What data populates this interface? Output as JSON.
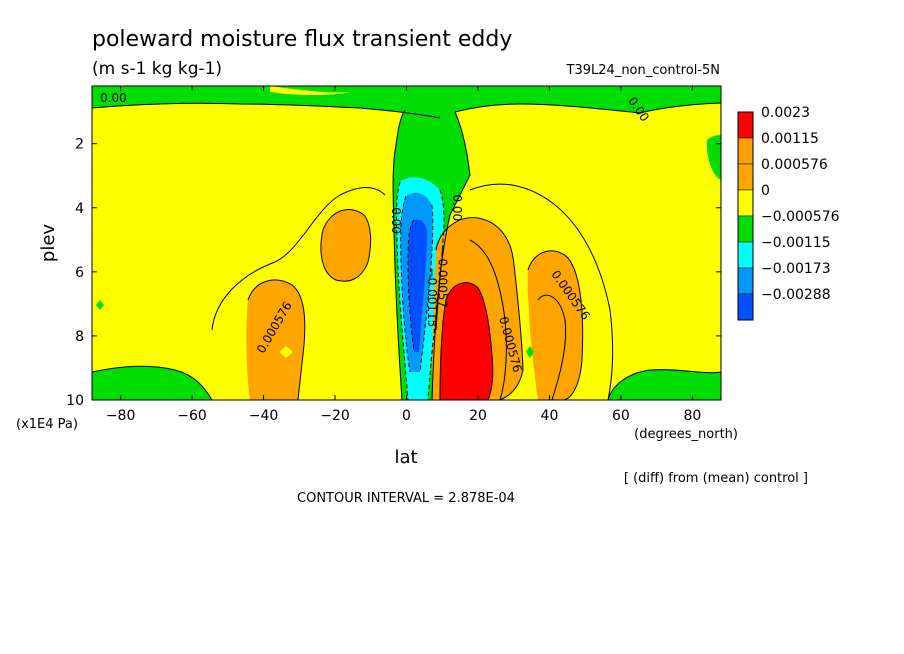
{
  "chart_data": {
    "type": "heatmap",
    "title": "poleward moisture flux transient eddy",
    "units": "(m s-1 kg kg-1)",
    "experiment": "T39L24_non_control-5N",
    "xlabel": "lat",
    "xunits": "(degrees_north)",
    "ylabel": "plev",
    "yunits": "(x1E4 Pa)",
    "xlim": [
      -88,
      88
    ],
    "ylim": [
      10,
      0.2
    ],
    "x_ticks": [
      -80,
      -60,
      -40,
      -20,
      0,
      20,
      40,
      60,
      80
    ],
    "x_tick_labels": [
      "−80",
      "−60",
      "−40",
      "−20",
      "0",
      "20",
      "40",
      "60",
      "80"
    ],
    "y_ticks": [
      2,
      4,
      6,
      8,
      10
    ],
    "y_tick_labels": [
      "2",
      "4",
      "6",
      "8",
      "10"
    ],
    "note": "[ (diff) from (mean) control ]",
    "contour_interval": "CONTOUR INTERVAL = 2.878E-04",
    "legend": [
      {
        "label": "0.0023",
        "color": "#ff0000"
      },
      {
        "label": "0.00115",
        "color": "#ff9f00"
      },
      {
        "label": "0.000576",
        "color": "#ffa500"
      },
      {
        "label": "0",
        "color": "#ffff00"
      },
      {
        "label": "−0.000576",
        "color": "#00dd00"
      },
      {
        "label": "−0.00115",
        "color": "#00ffff"
      },
      {
        "label": "−0.00173",
        "color": "#0099ff"
      },
      {
        "label": "−0.00288",
        "color": "#0050ff"
      }
    ],
    "contour_labels": [
      {
        "text": "0.00",
        "lat": -82,
        "p": 0.7
      },
      {
        "text": "0.00",
        "lat": 64,
        "p": 1.0
      },
      {
        "text": "0.00",
        "lat": -4,
        "p": 4.4
      },
      {
        "text": "0.00",
        "lat": 13,
        "p": 4.0
      },
      {
        "text": "−0.00057",
        "lat": 9,
        "p": 6.2
      },
      {
        "text": "−0.00115",
        "lat": 6,
        "p": 6.8
      },
      {
        "text": "0.000576",
        "lat": -36,
        "p": 7.8
      },
      {
        "text": "0.000576",
        "lat": 28,
        "p": 8.3
      },
      {
        "text": "0.000576",
        "lat": 45,
        "p": 6.8
      }
    ],
    "regions": [
      {
        "name": "top-negative-band",
        "color": "#00dd00",
        "lat_range": [
          -88,
          88
        ],
        "p_range": [
          0.2,
          0.6
        ]
      },
      {
        "name": "equatorial-negative-column",
        "color": "#00dd00",
        "lat_range": [
          -3,
          17
        ],
        "p_range": [
          0.6,
          10
        ]
      },
      {
        "name": "equatorial-cyan-core",
        "color": "#00ffff",
        "lat_range": [
          -2,
          13
        ],
        "p_range": [
          3.0,
          10
        ]
      },
      {
        "name": "equatorial-blue-core",
        "color": "#0099ff",
        "lat_range": [
          -1,
          9
        ],
        "p_range": [
          4.0,
          9.2
        ]
      },
      {
        "name": "equatorial-darkblue-core",
        "color": "#0050ff",
        "lat_range": [
          1,
          7
        ],
        "p_range": [
          4.4,
          8.7
        ]
      },
      {
        "name": "nh-red-maximum",
        "color": "#ff0000",
        "lat_range": [
          10,
          25
        ],
        "p_range": [
          6.0,
          10
        ]
      },
      {
        "name": "nh-orange-lobe",
        "color": "#ffa500",
        "lat_range": [
          8,
          32
        ],
        "p_range": [
          4.6,
          10
        ]
      },
      {
        "name": "nh-orange-secondary",
        "color": "#ffa500",
        "lat_range": [
          36,
          52
        ],
        "p_range": [
          5.2,
          10
        ]
      },
      {
        "name": "sh-orange-lobe",
        "color": "#ffa500",
        "lat_range": [
          -45,
          -28
        ],
        "p_range": [
          6.0,
          10
        ]
      },
      {
        "name": "sh-orange-upper",
        "color": "#ffa500",
        "lat_range": [
          -22,
          -9
        ],
        "p_range": [
          4.0,
          6.6
        ]
      },
      {
        "name": "sh-green-surface",
        "color": "#00dd00",
        "lat_range": [
          -88,
          -55
        ],
        "p_range": [
          9.0,
          10
        ]
      },
      {
        "name": "nh-green-surface",
        "color": "#00dd00",
        "lat_range": [
          50,
          88
        ],
        "p_range": [
          9.0,
          10
        ]
      }
    ]
  }
}
